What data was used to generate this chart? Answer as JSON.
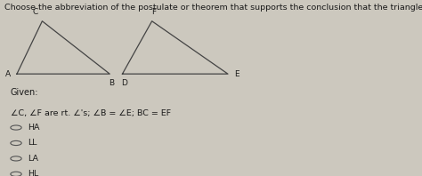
{
  "title": "Choose the abbreviation of the postulate or theorem that supports the conclusion that the triangles are congruent.",
  "title_fontsize": 6.8,
  "given_label": "Given:",
  "given_text": "∠C, ∠F are rt. ∠'s; ∠B = ∠E; BC = EF",
  "options": [
    "HA",
    "LL",
    "LA",
    "HL"
  ],
  "bg_color": "#ccc8be",
  "text_color": "#1a1a1a",
  "triangle1": {
    "A": [
      0.04,
      0.58
    ],
    "B": [
      0.26,
      0.58
    ],
    "C": [
      0.1,
      0.88
    ]
  },
  "triangle2": {
    "D": [
      0.29,
      0.58
    ],
    "E": [
      0.54,
      0.58
    ],
    "F": [
      0.36,
      0.88
    ]
  }
}
